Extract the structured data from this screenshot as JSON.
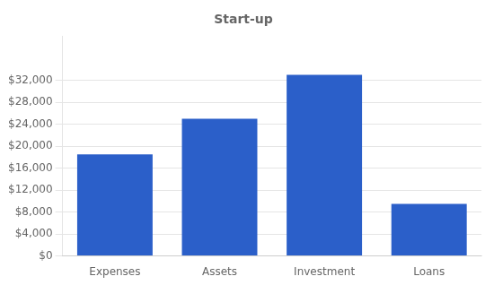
{
  "chart_data": {
    "type": "bar",
    "title": "Start-up",
    "categories": [
      "Expenses",
      "Assets",
      "Investment",
      "Loans"
    ],
    "values": [
      18500,
      25000,
      33000,
      9500
    ],
    "color": "#2B5FC9",
    "ylim": [
      0,
      39960
    ],
    "yticks": [
      {
        "value": 0,
        "label": "$0"
      },
      {
        "value": 4000,
        "label": "$4,000"
      },
      {
        "value": 8000,
        "label": "$8,000"
      },
      {
        "value": 12000,
        "label": "$12,000"
      },
      {
        "value": 16000,
        "label": "$16,000"
      },
      {
        "value": 20000,
        "label": "$20,000"
      },
      {
        "value": 24000,
        "label": "$24,000"
      },
      {
        "value": 28000,
        "label": "$28,000"
      },
      {
        "value": 32000,
        "label": "$32,000"
      }
    ],
    "grid": true
  }
}
